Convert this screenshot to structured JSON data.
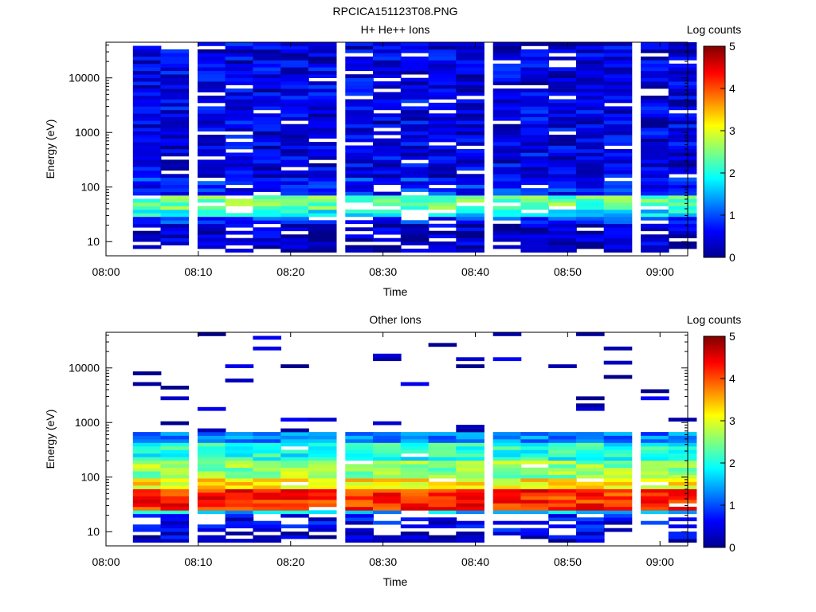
{
  "figure_title": "RPCICA151123T08.PNG",
  "colorbar": {
    "label": "Log counts",
    "ticks": [
      "0",
      "1",
      "2",
      "3",
      "4",
      "5"
    ],
    "range": [
      0,
      5
    ]
  },
  "axes": {
    "xlabel": "Time",
    "ylabel": "Energy (eV)",
    "x_ticks": [
      "08:00",
      "08:10",
      "08:20",
      "08:30",
      "08:40",
      "08:50",
      "09:00"
    ],
    "y_ticks": [
      "10",
      "100",
      "1000",
      "10000"
    ]
  },
  "chart_data": [
    {
      "type": "heatmap",
      "title": "H+ He++ Ions",
      "xlabel": "Time",
      "ylabel": "Energy (eV)",
      "y_scale": "log",
      "x_range": [
        "08:00",
        "09:03"
      ],
      "ylim": [
        5.5,
        45000
      ],
      "clim": [
        0,
        5
      ],
      "time_bins": [
        "08:03",
        "08:06",
        "08:10",
        "08:13",
        "08:16",
        "08:19",
        "08:22",
        "08:26",
        "08:29",
        "08:32",
        "08:35",
        "08:38",
        "08:42",
        "08:45",
        "08:48",
        "08:51",
        "08:54",
        "08:58",
        "09:01"
      ],
      "energy_profile": {
        "note": "log counts per energy band, read from colors",
        "bands": [
          {
            "energy_range": [
              6,
              20
            ],
            "level": 0.3
          },
          {
            "energy_range": [
              20,
              30
            ],
            "level": 0.8
          },
          {
            "energy_range": [
              30,
              40
            ],
            "level": 1.8
          },
          {
            "energy_range": [
              40,
              70
            ],
            "level": 2.4
          },
          {
            "energy_range": [
              70,
              150
            ],
            "level": 0.8
          },
          {
            "energy_range": [
              150,
              45000
            ],
            "level": 0.5
          }
        ]
      }
    },
    {
      "type": "heatmap",
      "title": "Other Ions",
      "xlabel": "Time",
      "ylabel": "Energy (eV)",
      "y_scale": "log",
      "x_range": [
        "08:00",
        "09:03"
      ],
      "ylim": [
        5.5,
        45000
      ],
      "clim": [
        0,
        5
      ],
      "time_bins": [
        "08:03",
        "08:06",
        "08:10",
        "08:13",
        "08:16",
        "08:19",
        "08:22",
        "08:26",
        "08:29",
        "08:32",
        "08:35",
        "08:38",
        "08:42",
        "08:45",
        "08:48",
        "08:51",
        "08:54",
        "08:58",
        "09:01"
      ],
      "energy_profile": {
        "note": "log counts per energy band, read from colors",
        "bands": [
          {
            "energy_range": [
              6,
              10
            ],
            "level": 0.4
          },
          {
            "energy_range": [
              10,
              20
            ],
            "level": 0.6
          },
          {
            "energy_range": [
              20,
              25
            ],
            "level": 1.6
          },
          {
            "energy_range": [
              25,
              60
            ],
            "level": 4.2
          },
          {
            "energy_range": [
              60,
              100
            ],
            "level": 3.2
          },
          {
            "energy_range": [
              100,
              200
            ],
            "level": 2.6
          },
          {
            "energy_range": [
              200,
              400
            ],
            "level": 2.0
          },
          {
            "energy_range": [
              400,
              700
            ],
            "level": 1.2
          },
          {
            "energy_range": [
              700,
              45000
            ],
            "level": 0.2
          }
        ]
      }
    }
  ]
}
